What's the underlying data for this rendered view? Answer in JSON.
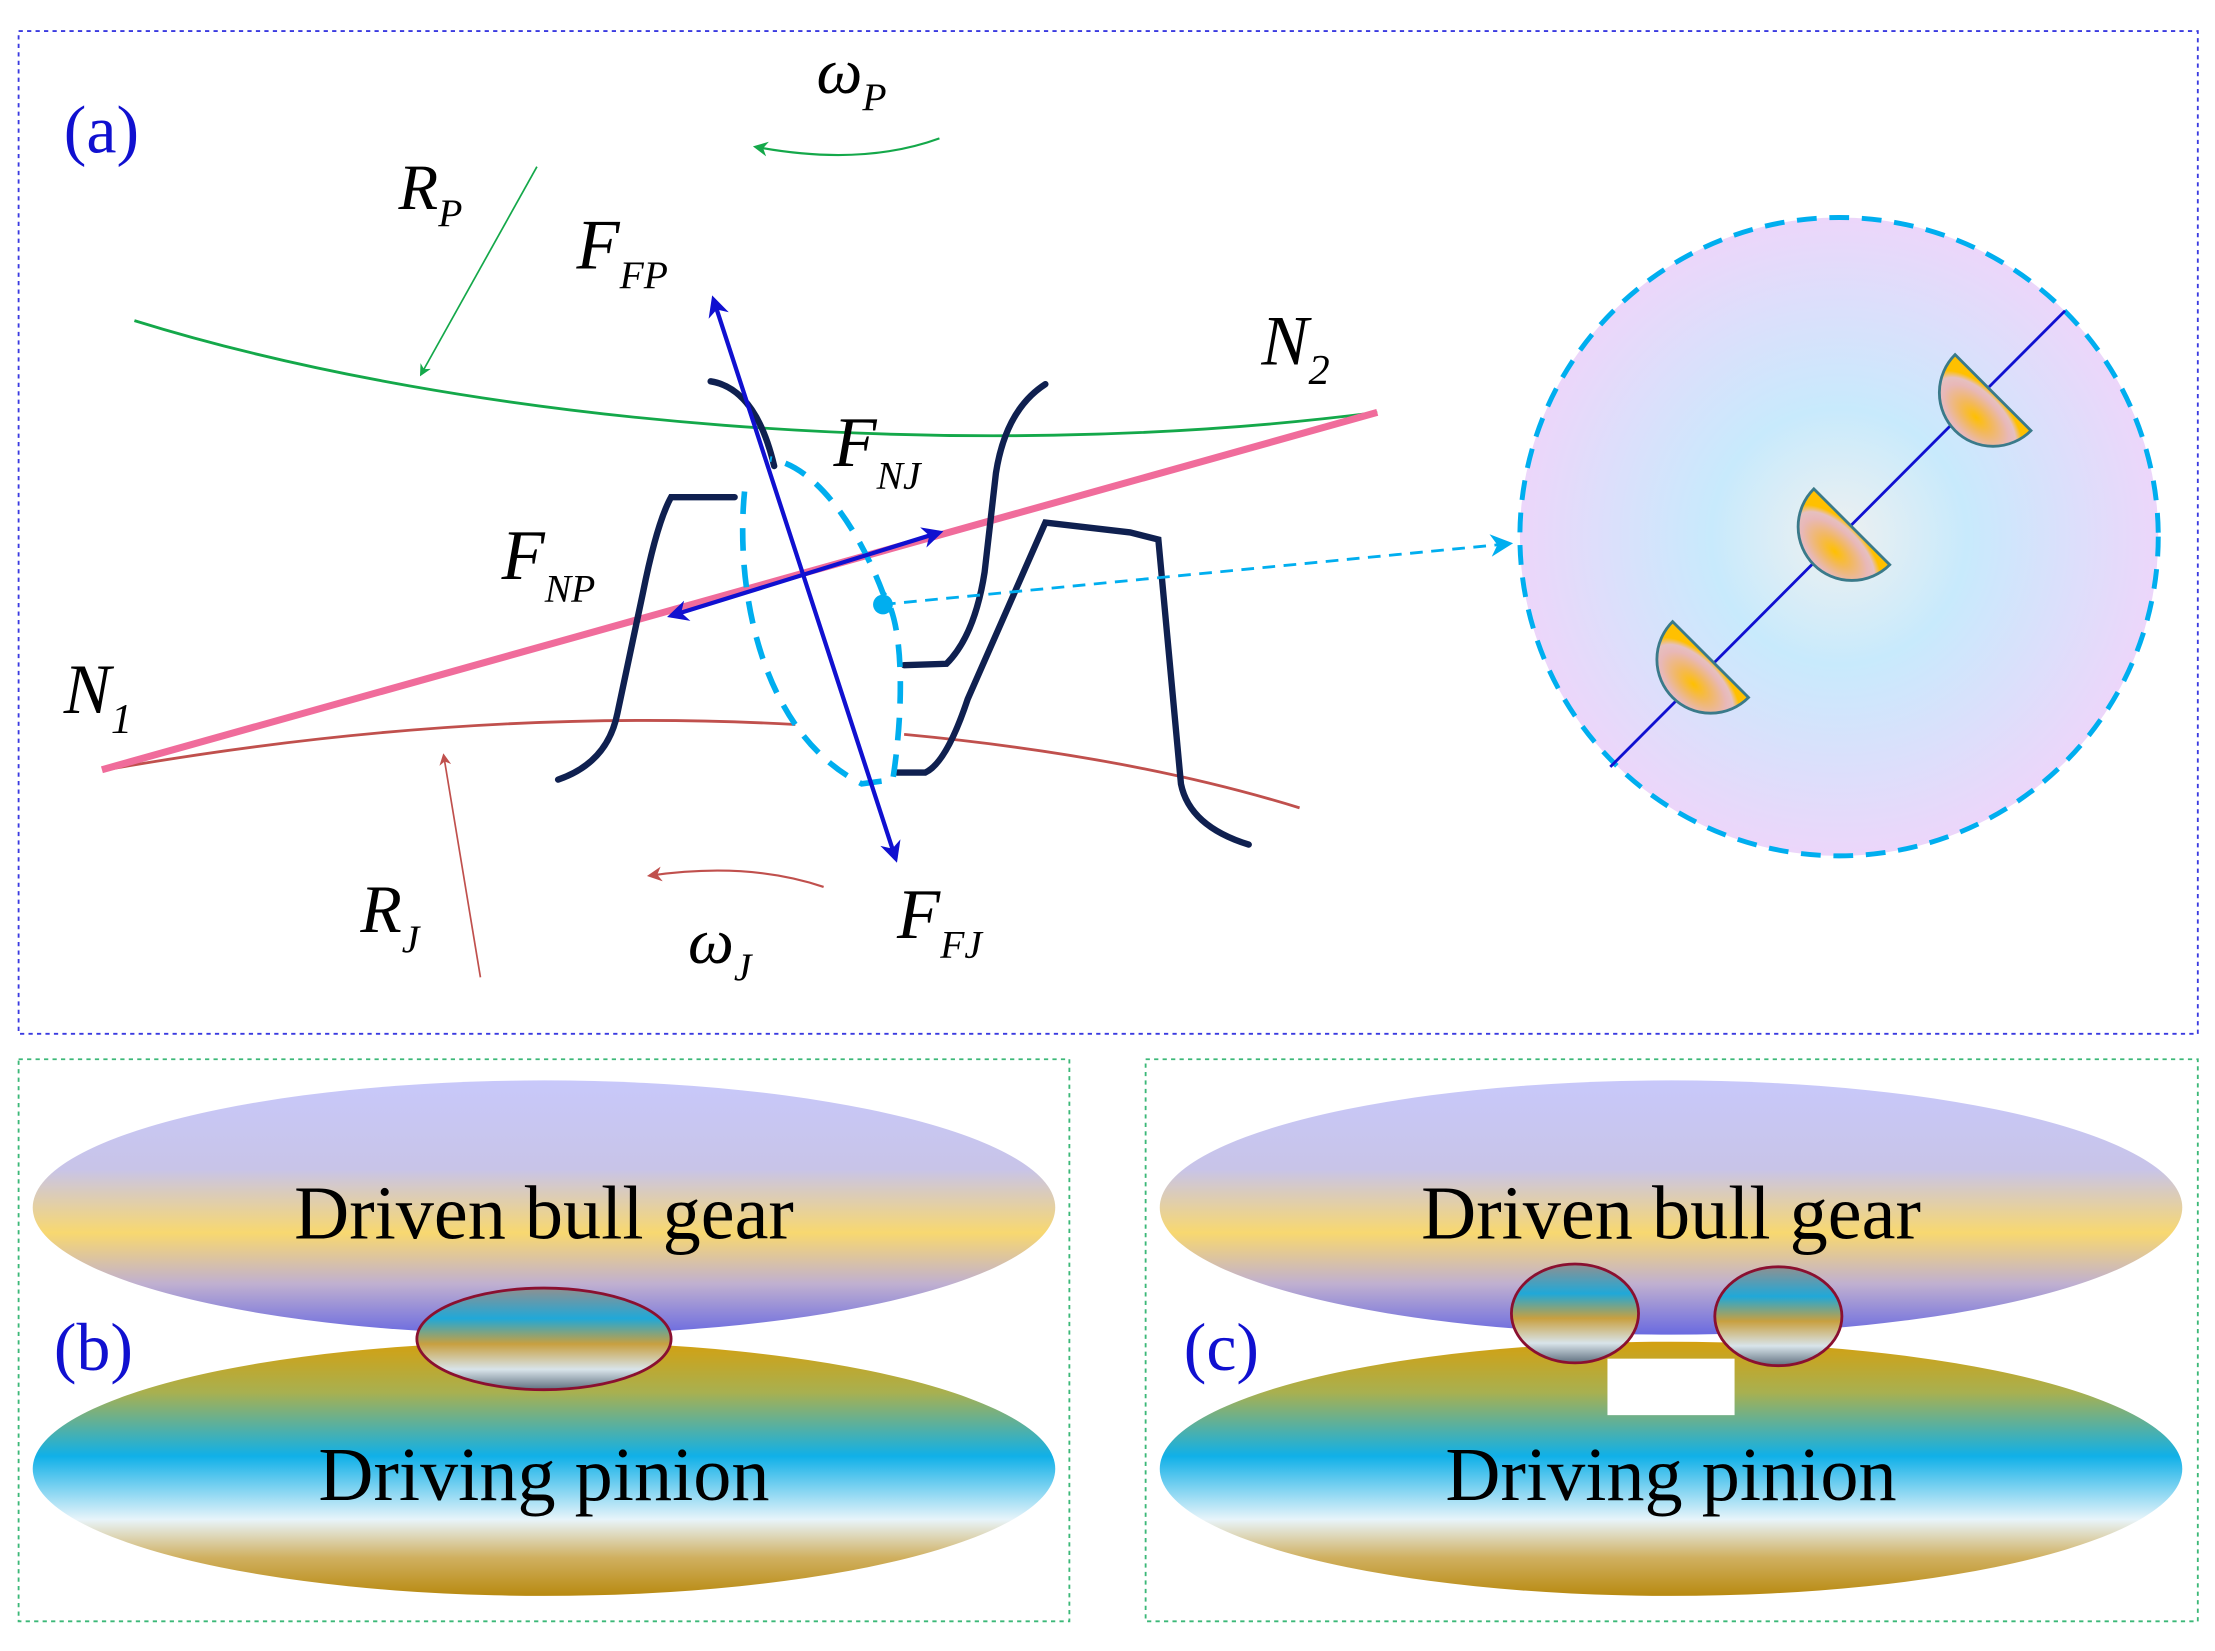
{
  "panel_a": {
    "label": "(a)",
    "omega_p": {
      "main": "ω",
      "sub": "P"
    },
    "omega_j": {
      "main": "ω",
      "sub": "J"
    },
    "r_p": {
      "main": "R",
      "sub": "P"
    },
    "r_j": {
      "main": "R",
      "sub": "J"
    },
    "f_fp": {
      "main": "F",
      "sub": "FP"
    },
    "f_fj": {
      "main": "F",
      "sub": "FJ"
    },
    "f_np": {
      "main": "F",
      "sub": "NP"
    },
    "f_nj": {
      "main": "F",
      "sub": "NJ"
    },
    "n1": {
      "main": "N",
      "sub": "1"
    },
    "n2": {
      "main": "N",
      "sub": "2"
    }
  },
  "panel_b": {
    "label": "(b)",
    "top_gear": "Driven bull gear",
    "bottom_gear": "Driving pinion"
  },
  "panel_c": {
    "label": "(c)",
    "top_gear": "Driven bull gear",
    "bottom_gear": "Driving pinion"
  },
  "colors": {
    "panel_a_border": "#3a3ae0",
    "panel_bc_border": "#3cb878",
    "pinion_pitch_circle": "#14a84a",
    "gear_pitch_circle": "#c0504d",
    "line_of_action": "#f06c9b",
    "force_arrows": "#1010d0",
    "tooth_profile": "#0f2050",
    "contact_zone": "#00aeef"
  }
}
